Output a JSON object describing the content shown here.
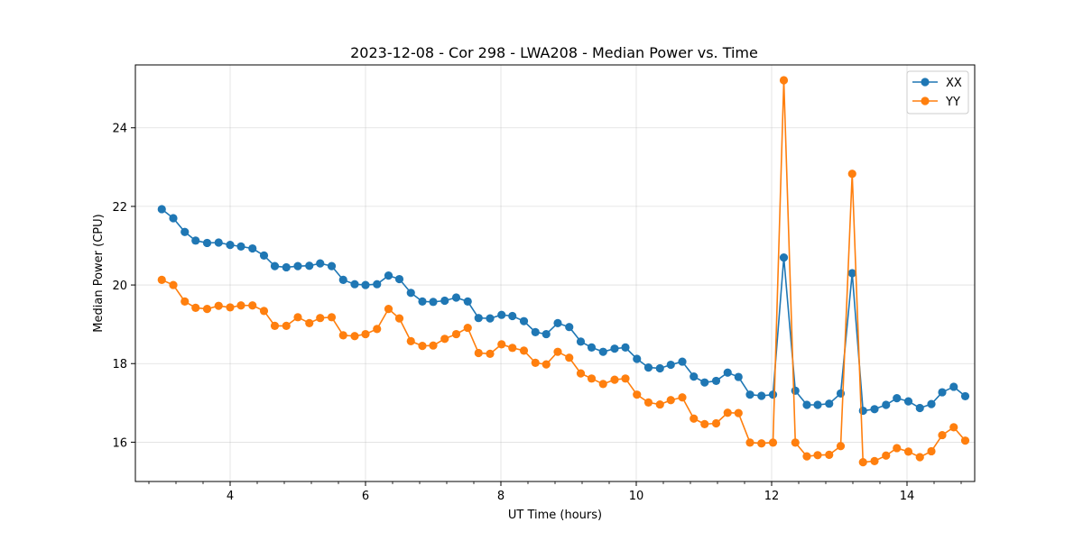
{
  "chart_data": {
    "type": "line",
    "title": "2023-12-08 - Cor 298 - LWA208 - Median Power vs. Time",
    "xlabel": "UT Time (hours)",
    "ylabel": "Median Power (CPU)",
    "xlim": [
      2.6,
      15.0
    ],
    "ylim": [
      15.0,
      25.6
    ],
    "xticks": [
      4,
      6,
      8,
      10,
      12,
      14
    ],
    "yticks": [
      16,
      18,
      20,
      22,
      24
    ],
    "grid": true,
    "legend_position": "top-right",
    "x": [
      2.99,
      3.16,
      3.33,
      3.49,
      3.66,
      3.83,
      4.0,
      4.16,
      4.33,
      4.5,
      4.66,
      4.83,
      5.0,
      5.17,
      5.33,
      5.5,
      5.67,
      5.84,
      6.0,
      6.17,
      6.34,
      6.5,
      6.67,
      6.84,
      7.0,
      7.17,
      7.34,
      7.51,
      7.67,
      7.84,
      8.01,
      8.17,
      8.34,
      8.51,
      8.67,
      8.84,
      9.01,
      9.18,
      9.34,
      9.51,
      9.68,
      9.84,
      10.01,
      10.18,
      10.35,
      10.51,
      10.68,
      10.85,
      11.01,
      11.18,
      11.35,
      11.51,
      11.68,
      11.85,
      12.02,
      12.18,
      12.35,
      12.52,
      12.68,
      12.85,
      13.02,
      13.19,
      13.35,
      13.52,
      13.69,
      13.85,
      14.02,
      14.19,
      14.36,
      14.52,
      14.69,
      14.86
    ],
    "series": [
      {
        "name": "XX",
        "color": "#1f77b4",
        "values": [
          21.93,
          21.7,
          21.35,
          21.13,
          21.07,
          21.08,
          21.02,
          20.98,
          20.93,
          20.75,
          20.48,
          20.45,
          20.48,
          20.49,
          20.55,
          20.48,
          20.13,
          20.02,
          20.0,
          20.02,
          20.24,
          20.15,
          19.8,
          19.58,
          19.57,
          19.6,
          19.68,
          19.58,
          19.16,
          19.15,
          19.24,
          19.21,
          19.08,
          18.8,
          18.75,
          19.03,
          18.93,
          18.56,
          18.41,
          18.3,
          18.38,
          18.41,
          18.12,
          17.9,
          17.88,
          17.97,
          18.05,
          17.67,
          17.52,
          17.56,
          17.77,
          17.66,
          17.21,
          17.18,
          17.21,
          20.7,
          17.31,
          16.95,
          16.95,
          16.98,
          17.24,
          20.3,
          16.8,
          16.84,
          16.95,
          17.12,
          17.04,
          16.87,
          16.97,
          17.27,
          17.41,
          17.17
        ]
      },
      {
        "name": "YY",
        "color": "#ff7f0e",
        "values": [
          20.13,
          20.0,
          19.58,
          19.42,
          19.39,
          19.47,
          19.43,
          19.48,
          19.48,
          19.34,
          18.96,
          18.96,
          19.18,
          19.03,
          19.16,
          19.18,
          18.72,
          18.7,
          18.75,
          18.88,
          19.39,
          19.15,
          18.57,
          18.45,
          18.46,
          18.63,
          18.75,
          18.91,
          18.27,
          18.25,
          18.49,
          18.4,
          18.33,
          18.02,
          17.98,
          18.3,
          18.15,
          17.75,
          17.62,
          17.48,
          17.59,
          17.62,
          17.21,
          17.01,
          16.96,
          17.07,
          17.14,
          16.6,
          16.46,
          16.48,
          16.75,
          16.74,
          15.99,
          15.97,
          15.99,
          25.21,
          15.99,
          15.64,
          15.67,
          15.68,
          15.9,
          22.83,
          15.49,
          15.52,
          15.66,
          15.85,
          15.76,
          15.62,
          15.77,
          16.18,
          16.38,
          16.04
        ]
      }
    ]
  }
}
